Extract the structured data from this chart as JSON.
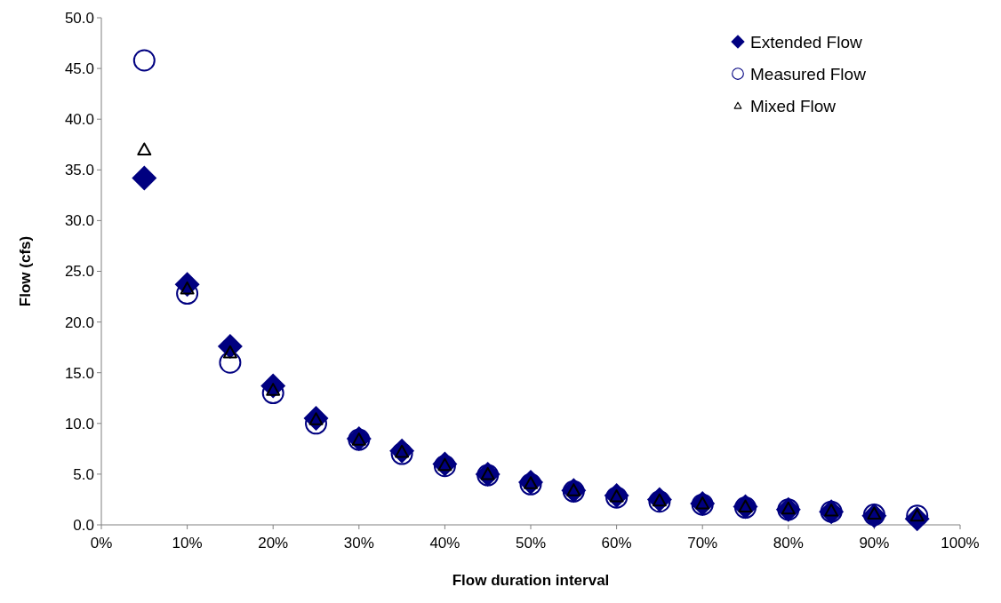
{
  "chart_data": {
    "type": "scatter",
    "xlabel": "Flow duration interval",
    "ylabel": "Flow (cfs)",
    "x": [
      5,
      10,
      15,
      20,
      25,
      30,
      35,
      40,
      45,
      50,
      55,
      60,
      65,
      70,
      75,
      80,
      85,
      90,
      95
    ],
    "series": [
      {
        "name": "Extended Flow",
        "color": "#000080",
        "marker": "diamond",
        "values": [
          34.2,
          23.7,
          17.6,
          13.7,
          10.5,
          8.5,
          7.3,
          6.0,
          5.0,
          4.2,
          3.4,
          2.9,
          2.5,
          2.1,
          1.8,
          1.5,
          1.3,
          0.9,
          0.6
        ]
      },
      {
        "name": "Measured Flow",
        "color": "#000080",
        "marker": "circle",
        "values": [
          45.8,
          22.8,
          16.0,
          13.0,
          10.0,
          8.4,
          7.0,
          5.8,
          4.9,
          4.0,
          3.3,
          2.7,
          2.3,
          2.0,
          1.7,
          1.5,
          1.3,
          1.0,
          0.9
        ]
      },
      {
        "name": "Mixed Flow",
        "color": "#000000",
        "marker": "triangle",
        "values": [
          37.0,
          23.3,
          17.0,
          13.3,
          10.4,
          8.4,
          7.2,
          5.9,
          5.0,
          4.1,
          3.4,
          2.8,
          2.4,
          2.1,
          1.8,
          1.6,
          1.4,
          1.1,
          0.9
        ]
      }
    ],
    "xlim": [
      0,
      100
    ],
    "xticks": [
      {
        "value": 0,
        "label": "0%"
      },
      {
        "value": 10,
        "label": "10%"
      },
      {
        "value": 20,
        "label": "20%"
      },
      {
        "value": 30,
        "label": "30%"
      },
      {
        "value": 40,
        "label": "40%"
      },
      {
        "value": 50,
        "label": "50%"
      },
      {
        "value": 60,
        "label": "60%"
      },
      {
        "value": 70,
        "label": "70%"
      },
      {
        "value": 80,
        "label": "80%"
      },
      {
        "value": 90,
        "label": "90%"
      },
      {
        "value": 100,
        "label": "100%"
      }
    ],
    "ylim": [
      0,
      50
    ],
    "yticks": [
      {
        "value": 0,
        "label": "0.0"
      },
      {
        "value": 5,
        "label": "5.0"
      },
      {
        "value": 10,
        "label": "10.0"
      },
      {
        "value": 15,
        "label": "15.0"
      },
      {
        "value": 20,
        "label": "20.0"
      },
      {
        "value": 25,
        "label": "25.0"
      },
      {
        "value": 30,
        "label": "30.0"
      },
      {
        "value": 35,
        "label": "35.0"
      },
      {
        "value": 40,
        "label": "40.0"
      },
      {
        "value": 45,
        "label": "45.0"
      },
      {
        "value": 50,
        "label": "50.0"
      }
    ],
    "grid": false,
    "legend": "top right"
  }
}
